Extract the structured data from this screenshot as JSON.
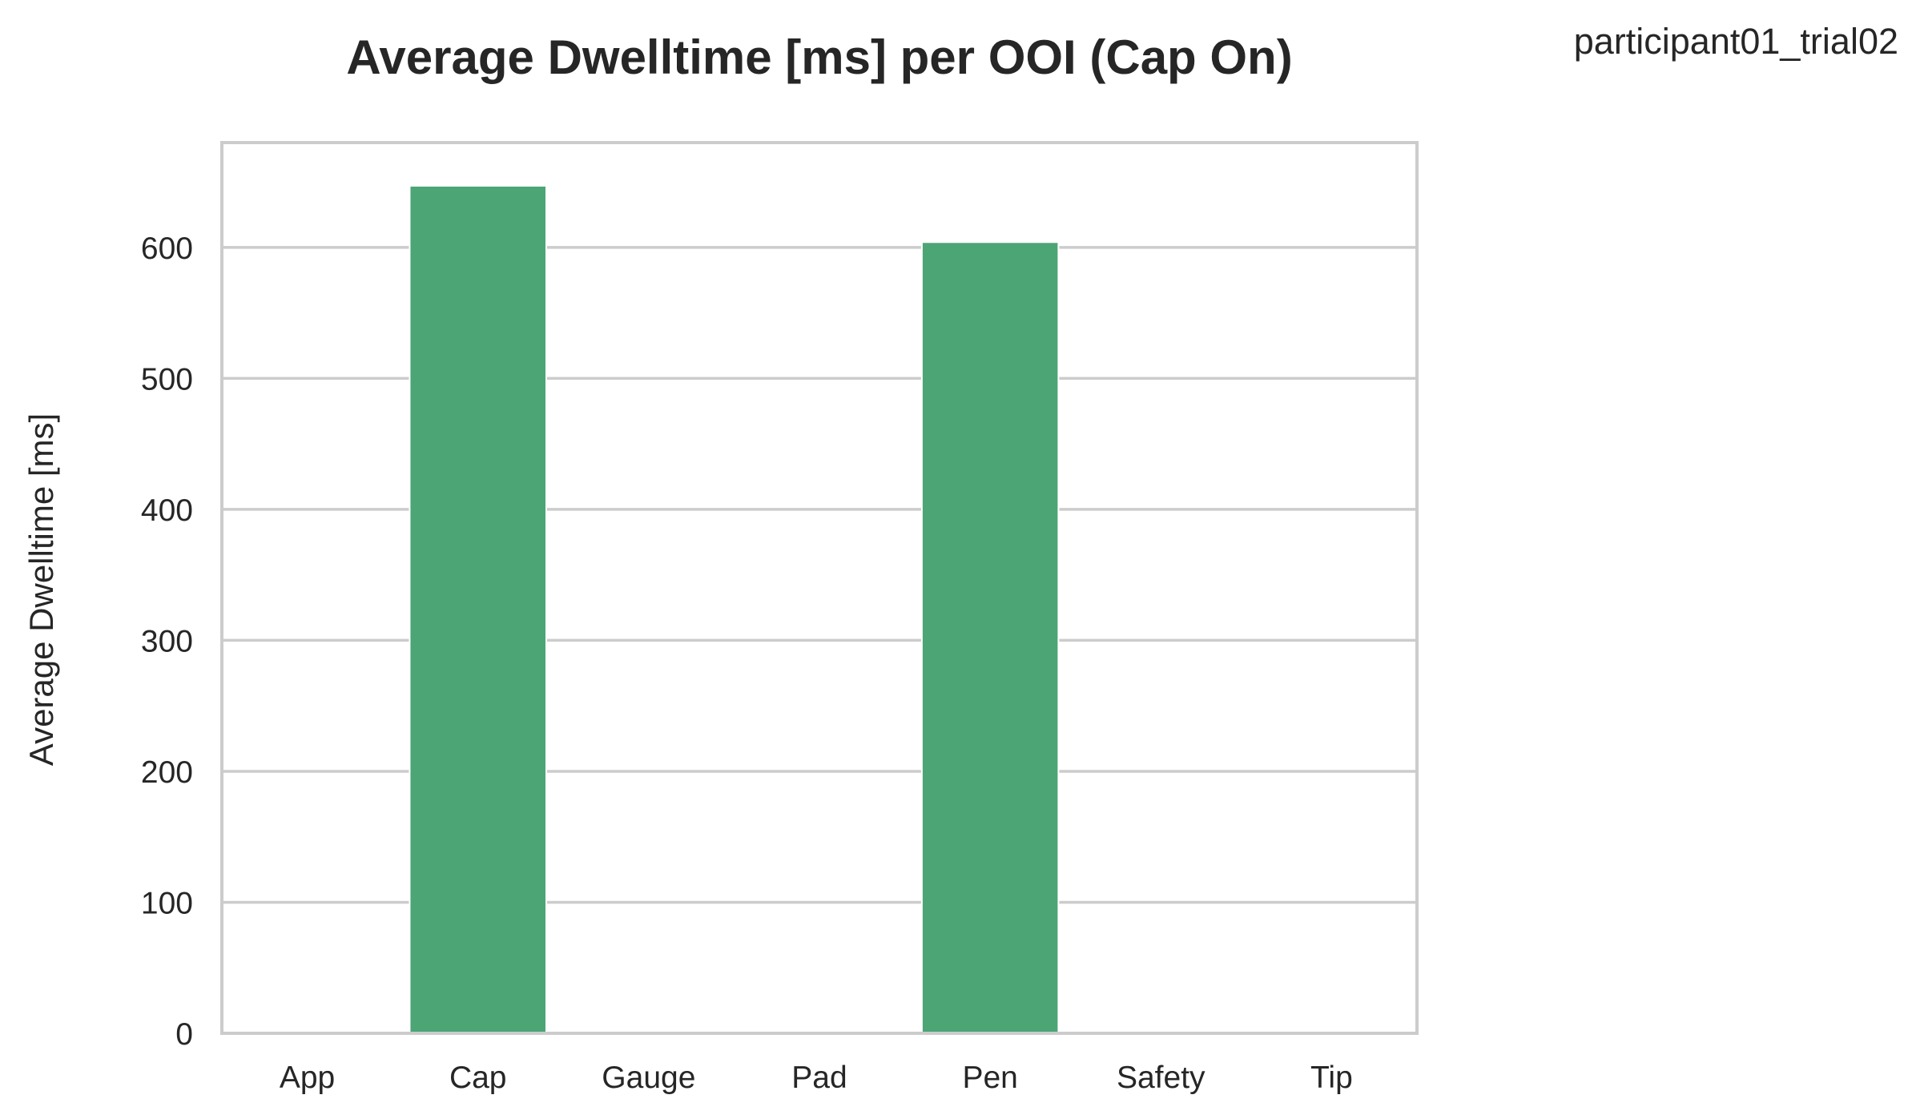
{
  "figure": {
    "corner_label": "participant01_trial02"
  },
  "chart_data": {
    "type": "bar",
    "title": "Average Dwelltime [ms] per OOI (Cap On)",
    "xlabel": "",
    "ylabel": "Average Dwelltime [ms]",
    "categories": [
      "App",
      "Cap",
      "Gauge",
      "Pad",
      "Pen",
      "Safety",
      "Tip"
    ],
    "values": [
      0,
      647,
      0,
      0,
      604,
      0,
      0
    ],
    "ylim": [
      0,
      680
    ],
    "yticks": [
      0,
      100,
      200,
      300,
      400,
      500,
      600
    ],
    "grid": "horizontal",
    "bar_color": "#4ca574",
    "grid_color": "#cccccc",
    "frame_color": "#cccccc"
  }
}
